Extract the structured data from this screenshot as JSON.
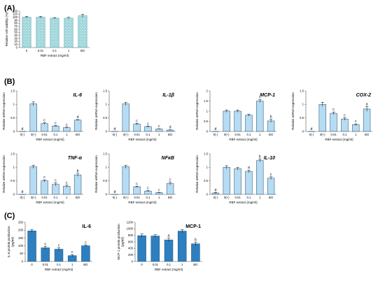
{
  "panel_labels": [
    "(A)",
    "(B)",
    "(C)"
  ],
  "colors": {
    "hatch_fill": "#7fc8cf",
    "light_bar": "#b5dcf2",
    "bar_stroke": "#3d5f80",
    "dark_bar": "#2e7fbf",
    "axis": "#555555"
  },
  "chart_data": [
    {
      "id": "A",
      "type": "bar",
      "style": "hatched",
      "categories": [
        "0",
        "0.01",
        "0.1",
        "1",
        "BO"
      ],
      "values": [
        100,
        100,
        97,
        97,
        105
      ],
      "errors": [
        3,
        3,
        2,
        3,
        5
      ],
      "letters": [
        "",
        "",
        "",
        "",
        ""
      ],
      "ylim": [
        0,
        120
      ],
      "yticks": [
        0,
        10,
        20,
        30,
        40,
        50,
        60,
        70,
        80,
        90,
        100,
        110,
        120
      ],
      "ylabel": "Relative cell viability (%)",
      "xlabel": "RBF extract  (mg/ml)",
      "title": ""
    },
    {
      "id": "B1",
      "type": "bar",
      "style": "light",
      "categories": [
        "0(-)",
        "0(+)",
        "0.01",
        "0.1",
        "1",
        "BO"
      ],
      "values": [
        0.0,
        1.02,
        0.29,
        0.2,
        0.14,
        0.42
      ],
      "errors": [
        0,
        0.07,
        0.03,
        0.02,
        0.02,
        0.02
      ],
      "letters": [
        "d",
        "",
        "c",
        "c",
        "c",
        "d"
      ],
      "ylim": [
        0,
        1.5
      ],
      "yticks": [
        0,
        0.5,
        1,
        1.5
      ],
      "ylabel": "Relative mRNA expression",
      "xlabel": "RBF extract  (mg/ml)",
      "title": "IL-6"
    },
    {
      "id": "B2",
      "type": "bar",
      "style": "light",
      "categories": [
        "0(-)",
        "0(+)",
        "0.01",
        "0.1",
        "1",
        "BO"
      ],
      "values": [
        0.0,
        1.02,
        0.27,
        0.18,
        0.09,
        0.05
      ],
      "errors": [
        0,
        0.06,
        0.03,
        0.02,
        0.01,
        0.01
      ],
      "letters": [
        "d",
        "",
        "c",
        "c",
        "c",
        "d"
      ],
      "ylim": [
        0,
        1.5
      ],
      "yticks": [
        0,
        0.5,
        1,
        1.5
      ],
      "ylabel": "Relative mRNA expression",
      "xlabel": "RBF extract  (mg/ml)",
      "title": "IL-1β"
    },
    {
      "id": "B3",
      "type": "bar",
      "style": "light",
      "categories": [
        "0(-)",
        "0(+)",
        "0.01",
        "0.1",
        "1",
        "BO"
      ],
      "values": [
        0.0,
        1.0,
        1.0,
        0.8,
        1.5,
        0.52
      ],
      "errors": [
        0,
        0.06,
        0.06,
        0.05,
        0.07,
        0.08
      ],
      "letters": [
        "d",
        "",
        "",
        "",
        "c",
        "b"
      ],
      "ylim": [
        0,
        2
      ],
      "yticks": [
        0,
        0.5,
        1,
        1.5,
        2
      ],
      "ylabel": "Relative mRNA expression",
      "xlabel": "RBF extract  (mg/ml)",
      "title": "MCP-1"
    },
    {
      "id": "B4",
      "type": "bar",
      "style": "light",
      "categories": [
        "0(-)",
        "0(+)",
        "0.01",
        "0.1",
        "1",
        "BO"
      ],
      "values": [
        0.0,
        1.0,
        0.67,
        0.46,
        0.25,
        0.83
      ],
      "errors": [
        0,
        0.08,
        0.05,
        0.05,
        0.03,
        0.09
      ],
      "letters": [
        "d",
        "",
        "c",
        "c",
        "c",
        "a"
      ],
      "ylim": [
        0,
        1.5
      ],
      "yticks": [
        0,
        0.5,
        1,
        1.5
      ],
      "ylabel": "Relative mRNA expression",
      "xlabel": "RBF extract  (mg/ml)",
      "title": "COX-2"
    },
    {
      "id": "B5",
      "type": "bar",
      "style": "light",
      "categories": [
        "0(-)",
        "0(+)",
        "0.01",
        "0.1",
        "1",
        "BO"
      ],
      "values": [
        0.0,
        1.02,
        0.5,
        0.37,
        0.3,
        0.72
      ],
      "errors": [
        0,
        0.06,
        0.04,
        0.06,
        0.04,
        0.06
      ],
      "letters": [
        "d",
        "",
        "c",
        "c",
        "c",
        "b"
      ],
      "ylim": [
        0,
        1.5
      ],
      "yticks": [
        0,
        0.5,
        1,
        1.5
      ],
      "ylabel": "Relative mRNA expression",
      "xlabel": "RBF extract  (mg/ml)",
      "title": "TNF-α"
    },
    {
      "id": "B6",
      "type": "bar",
      "style": "light",
      "categories": [
        "0(-)",
        "0(+)",
        "0.01",
        "0.1",
        "1",
        "BO"
      ],
      "values": [
        0.0,
        1.02,
        0.28,
        0.12,
        0.06,
        0.4
      ],
      "errors": [
        0,
        0.06,
        0.02,
        0.02,
        0.01,
        0.05
      ],
      "letters": [
        "d",
        "",
        "c",
        "c",
        "c",
        "c"
      ],
      "ylim": [
        0,
        1.5
      ],
      "yticks": [
        0,
        0.5,
        1,
        1.5
      ],
      "ylabel": "Relative mRNA expression",
      "xlabel": "RBF extract  (mg/ml)",
      "title": "NFκB"
    },
    {
      "id": "B7",
      "type": "bar",
      "style": "light",
      "categories": [
        "0(-)",
        "0(+)",
        "0.01",
        "0.1",
        "1",
        "BO"
      ],
      "values": [
        0.05,
        1.0,
        0.95,
        0.85,
        1.25,
        0.6
      ],
      "errors": [
        0.02,
        0.06,
        0.05,
        0.05,
        0.06,
        0.05
      ],
      "letters": [
        "d",
        "",
        "",
        "a",
        "b",
        "c"
      ],
      "ylim": [
        0,
        1.5
      ],
      "yticks": [
        0,
        0.5,
        1,
        1.5
      ],
      "ylabel": "Relative mRNA expression",
      "xlabel": "RBF extract  (mg/ml)",
      "title": "IL-10"
    },
    {
      "id": "C1",
      "type": "bar",
      "style": "dark",
      "categories": [
        "0",
        "0.01",
        "0.1",
        "1",
        "BO"
      ],
      "values": [
        195,
        87,
        78,
        37,
        100
      ],
      "errors": [
        8,
        10,
        10,
        7,
        5
      ],
      "letters": [
        "",
        "c",
        "c",
        "c",
        "c"
      ],
      "ylim": [
        0,
        250
      ],
      "yticks": [
        0,
        50,
        100,
        150,
        200,
        250
      ],
      "ylabel": "IL-6 protein production\n(pg/ml)",
      "xlabel": "RBF extract  (mg/ml)",
      "title": "IL-6"
    },
    {
      "id": "C2",
      "type": "bar",
      "style": "dark",
      "categories": [
        "0",
        "0.01",
        "0.1",
        "1",
        "BO"
      ],
      "values": [
        790,
        780,
        660,
        930,
        540
      ],
      "errors": [
        50,
        40,
        60,
        50,
        50
      ],
      "letters": [
        "",
        "",
        "a",
        "",
        "b"
      ],
      "ylim": [
        0,
        1200
      ],
      "yticks": [
        0,
        200,
        400,
        600,
        800,
        1000,
        1200
      ],
      "ylabel": "MCP-1 protein production\n(pg/ml)",
      "xlabel": "RBF extract  (mg/ml)",
      "title": "MCP-1"
    }
  ]
}
